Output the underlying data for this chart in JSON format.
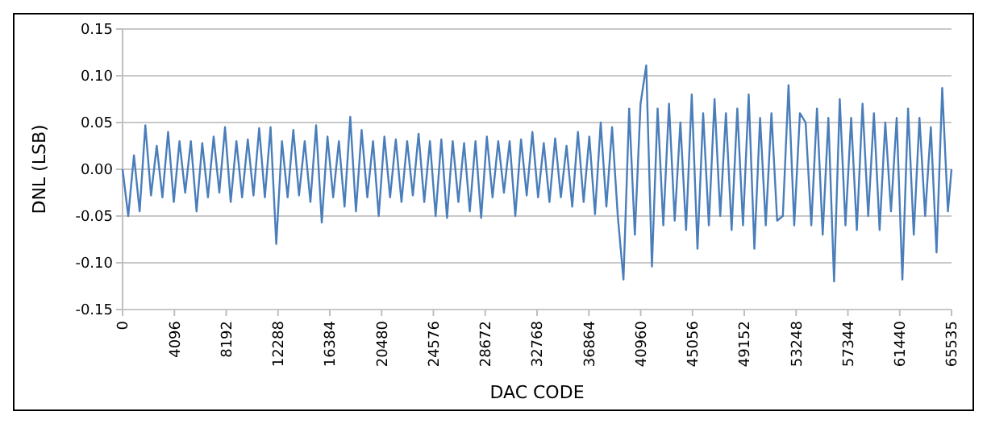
{
  "chart_data": {
    "type": "line",
    "xlabel": "DAC CODE",
    "ylabel": "DNL (LSB)",
    "x": [
      0,
      450,
      900,
      1350,
      1800,
      2250,
      2700,
      3150,
      3600,
      4050,
      4500,
      4950,
      5400,
      5850,
      6300,
      6750,
      7200,
      7650,
      8100,
      8550,
      9000,
      9450,
      9900,
      10350,
      10800,
      11250,
      11700,
      12150,
      12600,
      13050,
      13500,
      13950,
      14400,
      14850,
      15300,
      15750,
      16200,
      16650,
      17100,
      17550,
      18000,
      18450,
      18900,
      19350,
      19800,
      20250,
      20700,
      21150,
      21600,
      22050,
      22500,
      22950,
      23400,
      23850,
      24300,
      24750,
      25200,
      25650,
      26100,
      26550,
      27000,
      27450,
      27900,
      28350,
      28800,
      29250,
      29700,
      30150,
      30600,
      31050,
      31500,
      31950,
      32400,
      32850,
      33300,
      33750,
      34200,
      34650,
      35100,
      35550,
      36000,
      36450,
      36900,
      37350,
      37800,
      38250,
      38700,
      39150,
      39600,
      40050,
      40500,
      40950,
      41400,
      41850,
      42300,
      42750,
      43200,
      43650,
      44100,
      44550,
      45000,
      45450,
      45900,
      46350,
      46800,
      47250,
      47700,
      48150,
      48600,
      49050,
      49500,
      49950,
      50400,
      50850,
      51300,
      51750,
      52200,
      52650,
      53100,
      53550,
      54000,
      54450,
      54900,
      55350,
      55800,
      56250,
      56700,
      57150,
      57600,
      58050,
      58500,
      58950,
      59400,
      59850,
      60300,
      60750,
      61200,
      61650,
      62100,
      62550,
      63000,
      63450,
      63900,
      64350,
      64800,
      65250,
      65535
    ],
    "series": [
      {
        "color": "#4a7ebb",
        "values": [
          0.0,
          -0.05,
          0.015,
          -0.045,
          0.047,
          -0.028,
          0.025,
          -0.03,
          0.04,
          -0.035,
          0.03,
          -0.025,
          0.03,
          -0.045,
          0.028,
          -0.03,
          0.035,
          -0.025,
          0.045,
          -0.035,
          0.03,
          -0.03,
          0.032,
          -0.028,
          0.044,
          -0.03,
          0.045,
          -0.08,
          0.03,
          -0.03,
          0.042,
          -0.028,
          0.03,
          -0.035,
          0.047,
          -0.057,
          0.035,
          -0.03,
          0.03,
          -0.04,
          0.056,
          -0.045,
          0.042,
          -0.03,
          0.03,
          -0.05,
          0.035,
          -0.03,
          0.032,
          -0.035,
          0.03,
          -0.028,
          0.038,
          -0.035,
          0.03,
          -0.05,
          0.032,
          -0.052,
          0.03,
          -0.035,
          0.028,
          -0.045,
          0.03,
          -0.052,
          0.035,
          -0.03,
          0.03,
          -0.025,
          0.03,
          -0.05,
          0.032,
          -0.028,
          0.04,
          -0.03,
          0.028,
          -0.035,
          0.033,
          -0.03,
          0.025,
          -0.04,
          0.04,
          -0.035,
          0.035,
          -0.048,
          0.05,
          -0.04,
          0.045,
          -0.05,
          -0.118,
          0.065,
          -0.07,
          0.07,
          0.111,
          -0.104,
          0.065,
          -0.06,
          0.07,
          -0.055,
          0.05,
          -0.065,
          0.08,
          -0.085,
          0.06,
          -0.06,
          0.075,
          -0.05,
          0.06,
          -0.065,
          0.065,
          -0.06,
          0.08,
          -0.085,
          0.055,
          -0.06,
          0.06,
          -0.055,
          -0.05,
          0.09,
          -0.06,
          0.06,
          0.05,
          -0.06,
          0.065,
          -0.07,
          0.055,
          -0.12,
          0.075,
          -0.06,
          0.055,
          -0.065,
          0.07,
          -0.05,
          0.06,
          -0.065,
          0.05,
          -0.045,
          0.055,
          -0.118,
          0.065,
          -0.07,
          0.055,
          -0.05,
          0.045,
          -0.089,
          0.087,
          -0.045,
          0.0
        ]
      }
    ],
    "xlim": [
      0,
      65535
    ],
    "xticks": [
      0,
      4096,
      8192,
      12288,
      16384,
      20480,
      24576,
      28672,
      32768,
      36864,
      40960,
      45056,
      49152,
      53248,
      57344,
      61440,
      65535
    ],
    "ylim": [
      -0.15,
      0.15
    ],
    "yticks": [
      {
        "value": -0.15,
        "label": "-0.15"
      },
      {
        "value": -0.1,
        "label": "-0.10"
      },
      {
        "value": -0.05,
        "label": "-0.05"
      },
      {
        "value": 0,
        "label": "0.00"
      },
      {
        "value": 0.05,
        "label": "0.05"
      },
      {
        "value": 0.1,
        "label": "0.10"
      },
      {
        "value": 0.15,
        "label": "0.15"
      }
    ],
    "grid": "y",
    "marker": "none",
    "line_style": "solid"
  }
}
